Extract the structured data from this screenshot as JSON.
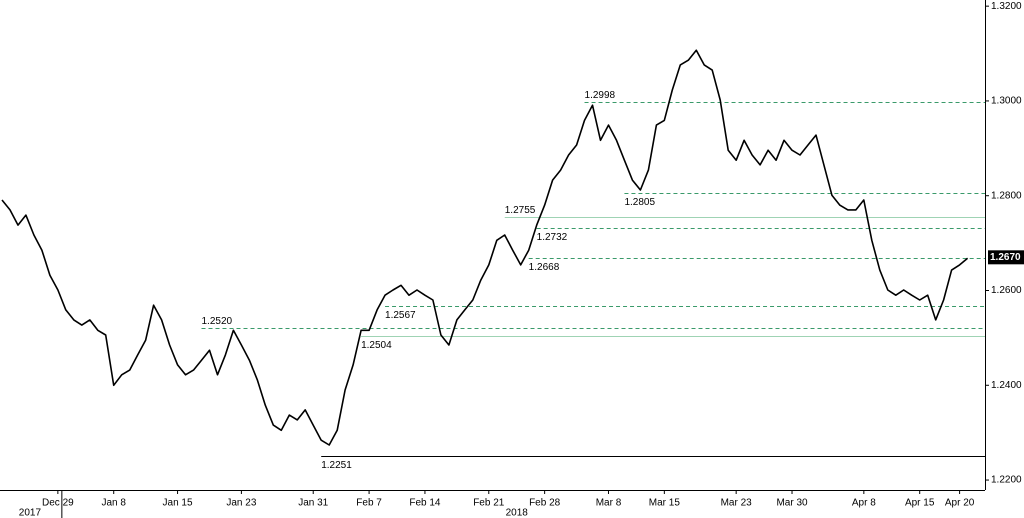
{
  "chart_data": {
    "type": "line",
    "categories": [
      null,
      null,
      null,
      null,
      null,
      null,
      null,
      "Dec 29",
      null,
      null,
      null,
      null,
      null,
      null,
      "Jan 8",
      null,
      null,
      null,
      null,
      null,
      null,
      null,
      "Jan 15",
      null,
      null,
      null,
      null,
      null,
      null,
      null,
      "Jan 23",
      null,
      null,
      null,
      null,
      null,
      null,
      null,
      null,
      "Jan 31",
      null,
      null,
      null,
      null,
      null,
      null,
      "Feb 7",
      null,
      null,
      null,
      null,
      null,
      null,
      "Feb 14",
      null,
      null,
      null,
      null,
      null,
      null,
      null,
      "Feb 21",
      null,
      null,
      null,
      null,
      null,
      null,
      "Feb 28",
      null,
      null,
      null,
      null,
      null,
      null,
      null,
      "Mar 8",
      null,
      null,
      null,
      null,
      null,
      null,
      "Mar 15",
      null,
      null,
      null,
      null,
      null,
      null,
      null,
      null,
      "Mar 23",
      null,
      null,
      null,
      null,
      null,
      null,
      "Mar 30",
      null,
      null,
      null,
      null,
      null,
      null,
      null,
      null,
      "Apr 8",
      null,
      null,
      null,
      null,
      null,
      null,
      "Apr 15",
      null,
      null,
      null,
      null,
      "Apr 20",
      null
    ],
    "x_groups": [
      {
        "label": "2017",
        "start": 0,
        "end": 7
      },
      {
        "label": "2018",
        "start": 8,
        "end": 121
      }
    ],
    "series": [
      {
        "color": "#000000",
        "values": [
          1.2791,
          1.277,
          1.2738,
          1.2759,
          1.2717,
          1.2685,
          1.2632,
          1.2601,
          1.2559,
          1.2538,
          1.2527,
          1.2538,
          1.2516,
          1.2506,
          1.24,
          1.2422,
          1.2432,
          1.2464,
          1.2495,
          1.2569,
          1.2538,
          1.2485,
          1.2443,
          1.2422,
          1.2432,
          1.2453,
          1.2474,
          1.2422,
          1.2464,
          1.2516,
          1.2485,
          1.2453,
          1.2411,
          1.2358,
          1.2316,
          1.2305,
          1.2337,
          1.2327,
          1.2348,
          1.2316,
          1.2284,
          1.2274,
          1.2305,
          1.239,
          1.2443,
          1.2516,
          1.2516,
          1.2559,
          1.259,
          1.2601,
          1.2611,
          1.259,
          1.2601,
          1.259,
          1.258,
          1.2506,
          1.2485,
          1.2538,
          1.2559,
          1.258,
          1.2622,
          1.2654,
          1.2706,
          1.2717,
          1.2685,
          1.2654,
          1.2685,
          1.2738,
          1.278,
          1.2833,
          1.2854,
          1.2886,
          1.2907,
          1.2959,
          1.2991,
          1.2917,
          1.2949,
          1.2917,
          1.2875,
          1.2833,
          1.2812,
          1.2854,
          1.2949,
          1.2959,
          1.3023,
          1.3076,
          1.3086,
          1.3107,
          1.3076,
          1.3065,
          1.3002,
          1.2896,
          1.2875,
          1.2917,
          1.2886,
          1.2865,
          1.2896,
          1.2875,
          1.2917,
          1.2896,
          1.2886,
          1.2907,
          1.2928,
          1.2865,
          1.2801,
          1.278,
          1.277,
          1.277,
          1.2791,
          1.2706,
          1.2643,
          1.2601,
          1.259,
          1.2601,
          1.259,
          1.258,
          1.259,
          1.2538,
          1.258,
          1.2643,
          1.2654,
          1.2668
        ]
      }
    ],
    "levels": [
      {
        "value": 1.2998,
        "start": 73,
        "style": "dashed",
        "color": "#3a9a6a",
        "label_pos": "above"
      },
      {
        "value": 1.2805,
        "start": 78,
        "style": "dashed",
        "color": "#3a9a6a",
        "label_pos": "below"
      },
      {
        "value": 1.2755,
        "start": 63,
        "style": "solid",
        "color": "#9fd3b4",
        "label_pos": "above"
      },
      {
        "value": 1.2732,
        "start": 67,
        "style": "dashed",
        "color": "#3a9a6a",
        "label_pos": "below"
      },
      {
        "value": 1.2668,
        "start": 66,
        "style": "dashed",
        "color": "#3a9a6a",
        "label_pos": "below"
      },
      {
        "value": 1.2567,
        "start": 48,
        "style": "dashed",
        "color": "#3a9a6a",
        "label_pos": "below"
      },
      {
        "value": 1.252,
        "label": "1.2520",
        "start": 25,
        "style": "dashed",
        "color": "#3a9a6a",
        "label_pos": "above"
      },
      {
        "value": 1.2504,
        "start": 45,
        "style": "solid",
        "color": "#9fd3b4",
        "label_pos": "below"
      },
      {
        "value": 1.2251,
        "start": 40,
        "style": "solid",
        "color": "#000000",
        "label_pos": "below"
      }
    ],
    "last_price": {
      "value": 1.267,
      "label": "1.2670"
    },
    "ylim": [
      1.2179,
      1.3213
    ],
    "yticks": [
      {
        "value": 1.22,
        "label": "1.2200"
      },
      {
        "value": 1.24,
        "label": "1.2400"
      },
      {
        "value": 1.26,
        "label": "1.2600"
      },
      {
        "value": 1.28,
        "label": "1.2800"
      },
      {
        "value": 1.3,
        "label": "1.3000"
      },
      {
        "value": 1.32,
        "label": "1.3200"
      }
    ]
  }
}
